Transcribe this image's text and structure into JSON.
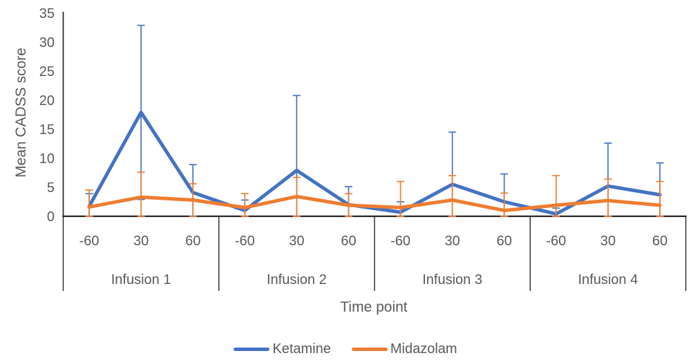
{
  "chart_data": {
    "type": "line",
    "title": "",
    "ylabel": "Mean CADSS score",
    "xlabel": "Time point",
    "ylim": [
      0,
      35
    ],
    "y_ticks": [
      0,
      5,
      10,
      15,
      20,
      25,
      30,
      35
    ],
    "grid": false,
    "legend_position": "bottom",
    "axis_color": "#262626",
    "text_color": "#595959",
    "groups": [
      "Infusion 1",
      "Infusion 2",
      "Infusion 3",
      "Infusion 4"
    ],
    "time_points": [
      "-60",
      "30",
      "60"
    ],
    "series": [
      {
        "name": "Ketamine",
        "color": "#4472C4",
        "values": [
          1.7,
          17.9,
          4.1,
          1.0,
          7.9,
          2.0,
          0.7,
          5.5,
          2.5,
          0.4,
          5.2,
          3.7
        ],
        "error_hi": [
          3.9,
          32.9,
          8.9,
          2.8,
          20.8,
          5.1,
          2.5,
          14.5,
          7.3,
          1.4,
          12.6,
          9.2
        ],
        "error_lo": [
          0,
          2.9,
          0,
          0,
          0,
          0,
          0,
          0,
          0,
          0,
          0,
          0
        ]
      },
      {
        "name": "Midazolam",
        "color": "#ED7D31",
        "values": [
          1.6,
          3.3,
          2.8,
          1.5,
          3.4,
          1.9,
          1.5,
          2.8,
          1.0,
          1.9,
          2.7,
          1.9
        ],
        "error_hi": [
          4.5,
          7.6,
          5.6,
          3.9,
          6.7,
          3.9,
          6.0,
          7.0,
          4.0,
          7.0,
          6.4,
          6.0
        ],
        "error_lo": [
          0,
          0,
          0,
          0,
          0,
          0,
          0,
          0,
          0,
          0,
          0,
          0
        ]
      }
    ]
  }
}
